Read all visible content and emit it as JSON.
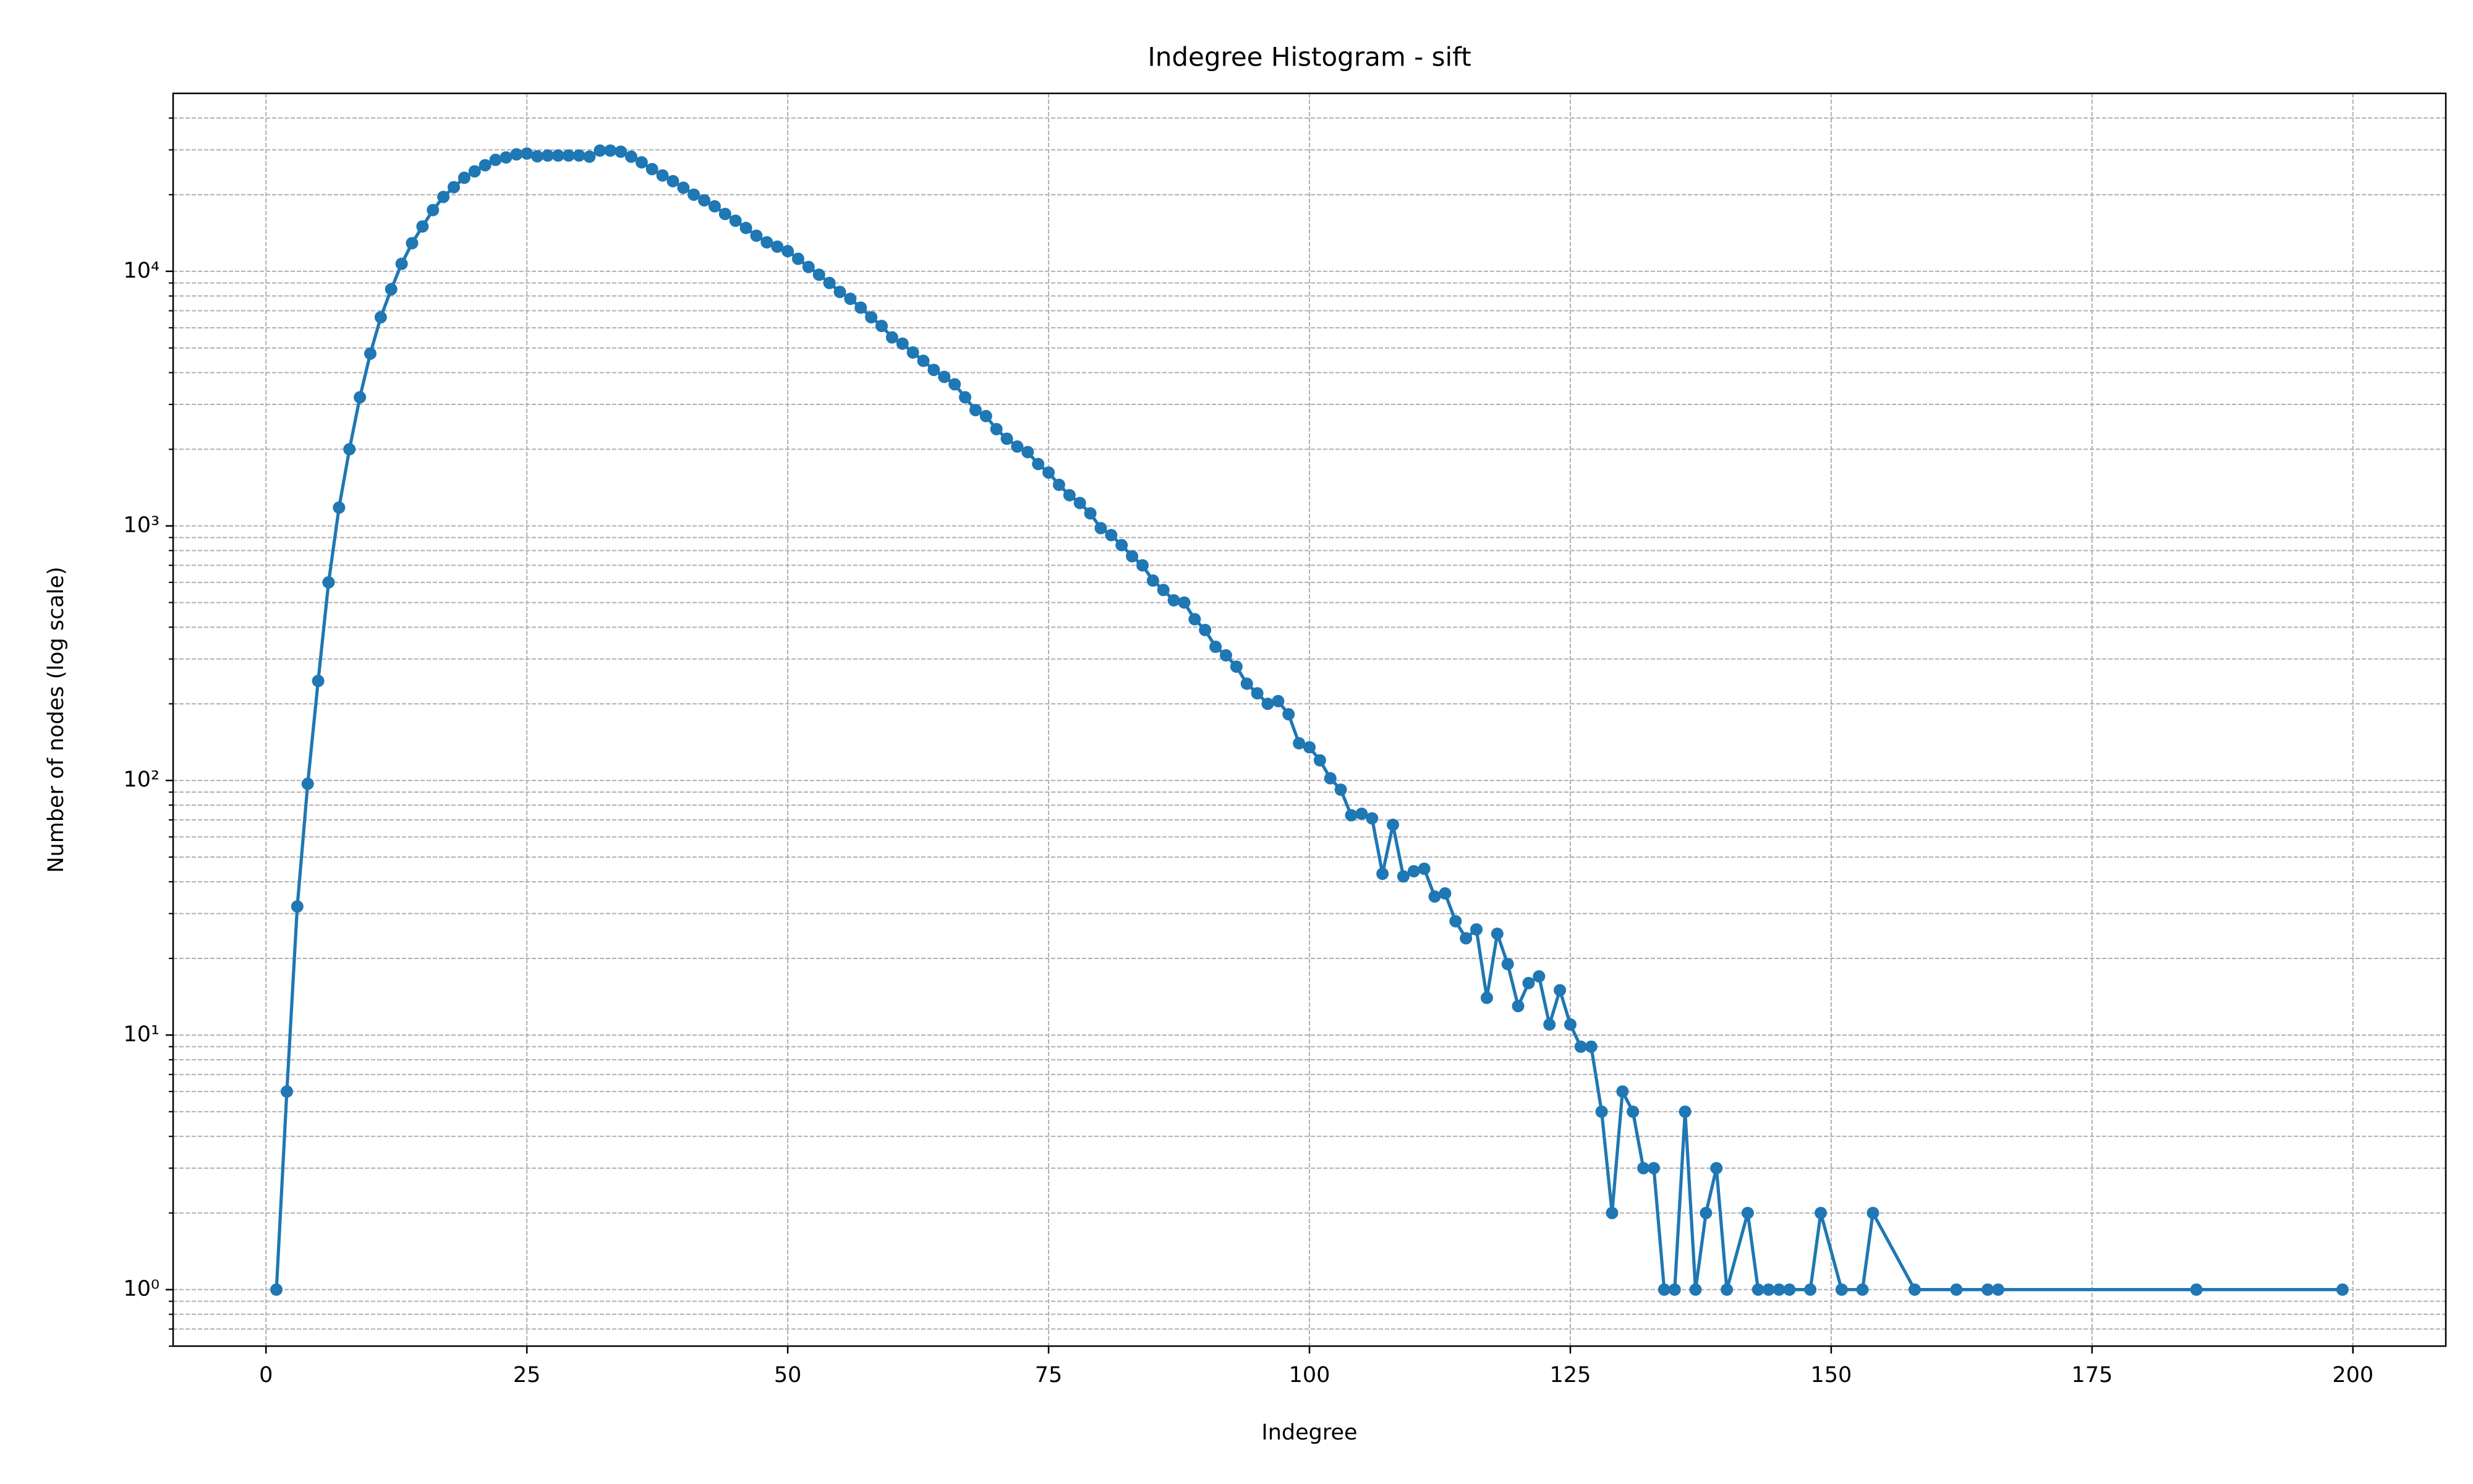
{
  "chart_data": {
    "type": "line",
    "title": "Indegree Histogram - sift",
    "x_label": "Indegree",
    "y_label": "Number of nodes (log scale)",
    "log_y": true,
    "grid": true,
    "color": "#1f77b4",
    "xlim": [
      -8.9,
      208.9
    ],
    "ylim": [
      0.6,
      50000
    ],
    "xticks": [
      0,
      25,
      50,
      75,
      100,
      125,
      150,
      175,
      200
    ],
    "yticks": [
      {
        "value": 1,
        "label": "10⁰"
      },
      {
        "value": 10,
        "label": "10¹"
      },
      {
        "value": 100,
        "label": "10²"
      },
      {
        "value": 1000,
        "label": "10³"
      },
      {
        "value": 10000,
        "label": "10⁴"
      }
    ],
    "yminorticks": [
      0.6,
      0.7,
      0.8,
      0.9,
      2,
      3,
      4,
      5,
      6,
      7,
      8,
      9,
      20,
      30,
      40,
      50,
      60,
      70,
      80,
      90,
      200,
      300,
      400,
      500,
      600,
      700,
      800,
      900,
      2000,
      3000,
      4000,
      5000,
      6000,
      7000,
      8000,
      9000,
      20000,
      30000,
      40000
    ],
    "x": [
      1,
      2,
      3,
      4,
      5,
      6,
      7,
      8,
      9,
      10,
      11,
      12,
      13,
      14,
      15,
      16,
      17,
      18,
      19,
      20,
      21,
      22,
      23,
      24,
      25,
      26,
      27,
      28,
      29,
      30,
      31,
      32,
      33,
      34,
      35,
      36,
      37,
      38,
      39,
      40,
      41,
      42,
      43,
      44,
      45,
      46,
      47,
      48,
      49,
      50,
      51,
      52,
      53,
      54,
      55,
      56,
      57,
      58,
      59,
      60,
      61,
      62,
      63,
      64,
      65,
      66,
      67,
      68,
      69,
      70,
      71,
      72,
      73,
      74,
      75,
      76,
      77,
      78,
      79,
      80,
      81,
      82,
      83,
      84,
      85,
      86,
      87,
      88,
      89,
      90,
      91,
      92,
      93,
      94,
      95,
      96,
      97,
      98,
      99,
      100,
      101,
      102,
      103,
      104,
      105,
      106,
      107,
      108,
      109,
      110,
      111,
      112,
      113,
      114,
      115,
      116,
      117,
      118,
      119,
      120,
      121,
      122,
      123,
      124,
      125,
      126,
      127,
      128,
      129,
      130,
      131,
      132,
      133,
      134,
      135,
      136,
      137,
      138,
      139,
      140,
      142,
      143,
      144,
      145,
      146,
      148,
      149,
      151,
      153,
      154,
      158,
      162,
      165,
      166,
      185,
      199
    ],
    "values": [
      1,
      6,
      32,
      97,
      246,
      600,
      1180,
      2000,
      3200,
      4750,
      6600,
      8500,
      10700,
      12900,
      15000,
      17400,
      19600,
      21400,
      23300,
      24700,
      26100,
      27400,
      28000,
      28800,
      29000,
      28300,
      28500,
      28500,
      28500,
      28500,
      28200,
      29800,
      29800,
      29500,
      28200,
      26800,
      25200,
      23800,
      22600,
      21300,
      20000,
      19000,
      18000,
      16800,
      15800,
      14800,
      13800,
      13000,
      12500,
      12000,
      11200,
      10400,
      9700,
      9000,
      8300,
      7800,
      7200,
      6600,
      6100,
      5500,
      5200,
      4800,
      4450,
      4100,
      3850,
      3600,
      3200,
      2850,
      2700,
      2400,
      2200,
      2050,
      1950,
      1750,
      1620,
      1450,
      1320,
      1230,
      1120,
      980,
      920,
      840,
      760,
      700,
      610,
      560,
      510,
      500,
      430,
      390,
      335,
      310,
      280,
      240,
      220,
      200,
      205,
      182,
      140,
      135,
      120,
      102,
      92,
      73,
      74,
      71,
      43,
      67,
      42,
      44,
      45,
      35,
      36,
      28,
      24,
      26,
      14,
      25,
      19,
      13,
      16,
      17,
      11,
      15,
      11,
      9,
      9,
      5,
      2,
      6,
      5,
      3,
      3,
      1,
      1,
      5,
      1,
      2,
      3,
      1,
      2,
      1,
      1,
      1,
      1,
      1,
      2,
      1,
      1,
      2,
      1,
      1,
      1,
      1,
      1,
      1
    ]
  }
}
